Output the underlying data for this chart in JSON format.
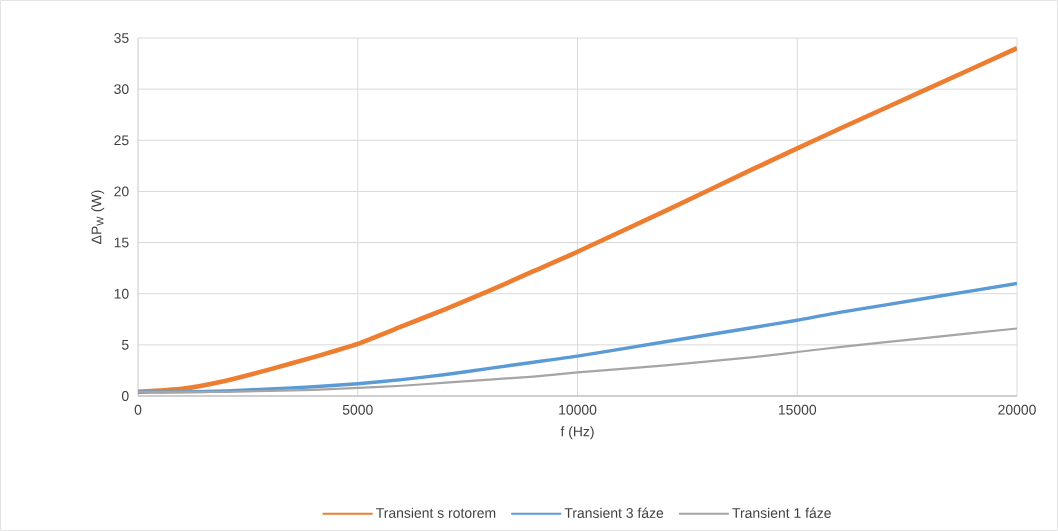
{
  "chart_data": {
    "type": "line",
    "xlabel": "f (Hz)",
    "ylabel": "ΔP$_{W}$ (W)",
    "xlim": [
      0,
      20000
    ],
    "xticks": [
      0,
      5000,
      10000,
      15000,
      20000
    ],
    "ylim": [
      0,
      35
    ],
    "yticks": [
      0,
      5,
      10,
      15,
      20,
      25,
      30,
      35
    ],
    "grid": true,
    "legend": "bottom",
    "x": [
      0,
      1000,
      2000,
      3000,
      4000,
      5000,
      6000,
      7000,
      8000,
      9000,
      10000,
      12000,
      14000,
      15000,
      16000,
      18000,
      20000
    ],
    "series": [
      {
        "name": "Transient s rotorem",
        "color": "#ed7d31",
        "values": [
          0.4,
          0.7,
          1.5,
          2.6,
          3.8,
          5.1,
          6.8,
          8.5,
          10.3,
          12.2,
          14.1,
          18.1,
          22.2,
          24.2,
          26.2,
          30.1,
          34.0
        ]
      },
      {
        "name": "Transient 3 fáze",
        "color": "#5b9bd5",
        "values": [
          0.4,
          0.4,
          0.5,
          0.7,
          0.9,
          1.2,
          1.6,
          2.1,
          2.7,
          3.3,
          3.9,
          5.3,
          6.7,
          7.4,
          8.2,
          9.6,
          11.0
        ]
      },
      {
        "name": "Transient 1 fáze",
        "color": "#a5a5a5",
        "values": [
          0.4,
          0.4,
          0.4,
          0.5,
          0.6,
          0.8,
          1.0,
          1.3,
          1.6,
          1.9,
          2.3,
          3.0,
          3.8,
          4.3,
          4.8,
          5.7,
          6.6
        ]
      }
    ]
  }
}
